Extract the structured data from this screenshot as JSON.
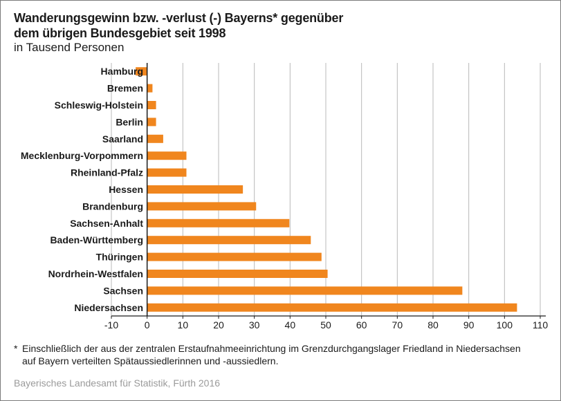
{
  "chart_data": {
    "type": "bar",
    "orientation": "horizontal",
    "title_line1": "Wanderungsgewinn bzw. -verlust (-) Bayerns* gegenüber",
    "title_line2": "dem übrigen Bundesgebiet seit 1998",
    "subtitle": "in Tausend Personen",
    "categories": [
      "Hamburg",
      "Bremen",
      "Schleswig-Holstein",
      "Berlin",
      "Saarland",
      "Mecklenburg-Vorpommern",
      "Rheinland-Pfalz",
      "Hessen",
      "Brandenburg",
      "Sachsen-Anhalt",
      "Baden-Württemberg",
      "Thüringen",
      "Nordrhein-Westfalen",
      "Sachsen",
      "Niedersachsen"
    ],
    "values": [
      -3.2,
      1.5,
      2.5,
      2.5,
      4.5,
      11,
      11,
      26.8,
      30.5,
      39.8,
      45.8,
      48.8,
      50.5,
      88.2,
      103.5
    ],
    "xlim": [
      -10,
      110
    ],
    "xticks": [
      "-10",
      "0",
      "10",
      "20",
      "30",
      "40",
      "50",
      "60",
      "70",
      "80",
      "90",
      "100",
      "110"
    ],
    "xtick_values": [
      -10,
      0,
      10,
      20,
      30,
      40,
      50,
      60,
      70,
      80,
      90,
      100,
      110
    ],
    "grid": "vertical",
    "bar_color": "#f0861e"
  },
  "footnote": {
    "marker": "*",
    "line1": "Einschließlich der aus der zentralen Erstaufnahmeeinrichtung im Grenzdurchgangslager Friedland in Niedersachsen",
    "line2": "auf Bayern verteilten Spätaussiedlerinnen und -aussiedlern."
  },
  "source": "Bayerisches Landesamt für Statistik, Fürth 2016"
}
